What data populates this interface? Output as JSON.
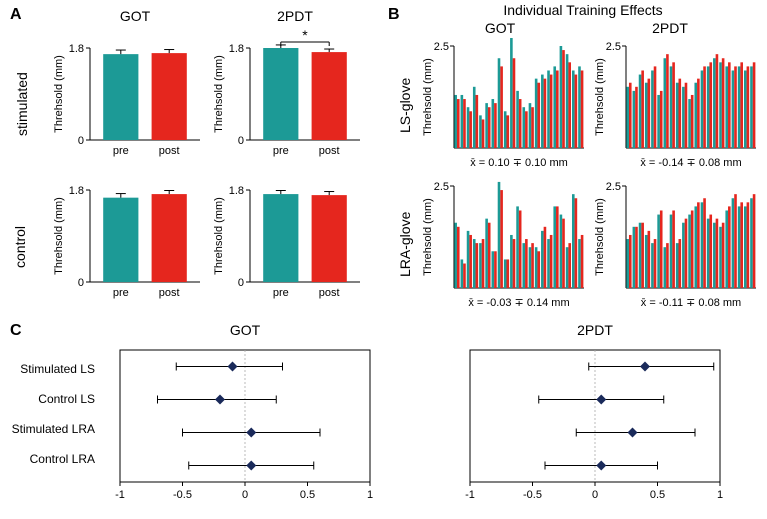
{
  "colors": {
    "pre": "#1c9a96",
    "post": "#e5261e",
    "bg": "#ffffff",
    "axis": "#000000",
    "dot": "#1a2a5a"
  },
  "panelA": {
    "label": "A",
    "cols": [
      "GOT",
      "2PDT"
    ],
    "rows": [
      "stimulated",
      "control"
    ],
    "ylabel": "Threhsold (mm)",
    "ymax": 1.8,
    "xticks": [
      "pre",
      "post"
    ],
    "sig_marker": "*",
    "cells": [
      {
        "row": 0,
        "col": 0,
        "pre": 1.68,
        "post": 1.7,
        "pre_err": 0.08,
        "post_err": 0.07,
        "sig": false
      },
      {
        "row": 0,
        "col": 1,
        "pre": 1.8,
        "post": 1.72,
        "pre_err": 0.06,
        "post_err": 0.06,
        "sig": true
      },
      {
        "row": 1,
        "col": 0,
        "pre": 1.65,
        "post": 1.72,
        "pre_err": 0.08,
        "post_err": 0.07,
        "sig": false
      },
      {
        "row": 1,
        "col": 1,
        "pre": 1.72,
        "post": 1.7,
        "pre_err": 0.07,
        "post_err": 0.07,
        "sig": false
      }
    ]
  },
  "panelB": {
    "label": "B",
    "title": "Individual Training Effects",
    "cols": [
      "GOT",
      "2PDT"
    ],
    "rows": [
      "LS-glove",
      "LRA-glove"
    ],
    "ylabel": "Threhsold (mm)",
    "ymax": 2.5,
    "annotations": [
      "x̄ = 0.10 ∓ 0.10 mm",
      "x̄ = -0.14 ∓ 0.08 mm",
      "x̄ = -0.03 ∓ 0.14 mm",
      "x̄ = -0.11 ∓ 0.08 mm"
    ],
    "cells": [
      {
        "row": 0,
        "col": 0,
        "pre": [
          1.3,
          1.3,
          1.0,
          1.5,
          0.8,
          1.1,
          1.2,
          2.2,
          0.9,
          2.9,
          1.4,
          1.0,
          1.1,
          1.7,
          1.8,
          1.9,
          2.0,
          2.5,
          2.3,
          1.9,
          2.0
        ],
        "post": [
          1.2,
          1.2,
          0.9,
          1.3,
          0.7,
          1.0,
          1.1,
          2.0,
          0.8,
          2.2,
          1.2,
          0.9,
          1.0,
          1.6,
          1.7,
          1.8,
          1.9,
          2.4,
          2.1,
          1.8,
          1.9
        ]
      },
      {
        "row": 0,
        "col": 1,
        "pre": [
          1.5,
          1.4,
          1.8,
          1.6,
          1.9,
          1.3,
          2.2,
          2.0,
          1.6,
          1.5,
          1.2,
          1.6,
          1.9,
          2.0,
          2.2,
          2.1,
          2.0,
          1.9,
          2.0,
          1.9,
          2.0
        ],
        "post": [
          1.6,
          1.5,
          1.9,
          1.7,
          2.0,
          1.4,
          2.3,
          2.1,
          1.7,
          1.6,
          1.3,
          1.7,
          2.0,
          2.1,
          2.3,
          2.2,
          2.1,
          2.0,
          2.1,
          2.0,
          2.1
        ]
      },
      {
        "row": 1,
        "col": 0,
        "pre": [
          1.6,
          0.7,
          1.4,
          1.2,
          1.1,
          1.7,
          0.9,
          2.6,
          0.7,
          1.3,
          2.0,
          1.1,
          1.0,
          1.0,
          1.4,
          1.2,
          2.0,
          1.8,
          1.0,
          2.3,
          1.2
        ],
        "post": [
          1.5,
          0.6,
          1.3,
          1.1,
          1.2,
          1.6,
          0.9,
          2.4,
          0.7,
          1.2,
          1.9,
          1.2,
          1.1,
          0.9,
          1.5,
          1.3,
          2.0,
          1.7,
          1.1,
          2.2,
          1.3
        ]
      },
      {
        "row": 1,
        "col": 1,
        "pre": [
          1.2,
          1.5,
          1.6,
          1.3,
          1.1,
          1.8,
          1.0,
          1.8,
          1.1,
          1.6,
          1.8,
          2.0,
          2.1,
          1.7,
          1.6,
          1.5,
          1.9,
          2.2,
          2.0,
          2.0,
          2.2
        ],
        "post": [
          1.3,
          1.5,
          1.6,
          1.4,
          1.2,
          1.9,
          1.1,
          1.9,
          1.2,
          1.7,
          1.9,
          2.1,
          2.2,
          1.8,
          1.7,
          1.6,
          2.0,
          2.3,
          2.1,
          2.1,
          2.3
        ]
      }
    ]
  },
  "panelC": {
    "label": "C",
    "cols": [
      "GOT",
      "2PDT"
    ],
    "rows": [
      "Stimulated LS",
      "Control LS",
      "Stimulated LRA",
      "Control LRA"
    ],
    "xlim": [
      -1,
      1
    ],
    "xtick_step": 0.5,
    "data": [
      [
        {
          "m": -0.1,
          "lo": -0.55,
          "hi": 0.3
        },
        {
          "m": -0.2,
          "lo": -0.7,
          "hi": 0.25
        },
        {
          "m": 0.05,
          "lo": -0.5,
          "hi": 0.6
        },
        {
          "m": 0.05,
          "lo": -0.45,
          "hi": 0.55
        }
      ],
      [
        {
          "m": 0.4,
          "lo": -0.05,
          "hi": 0.95
        },
        {
          "m": 0.05,
          "lo": -0.45,
          "hi": 0.55
        },
        {
          "m": 0.3,
          "lo": -0.15,
          "hi": 0.8
        },
        {
          "m": 0.05,
          "lo": -0.4,
          "hi": 0.5
        }
      ]
    ]
  }
}
